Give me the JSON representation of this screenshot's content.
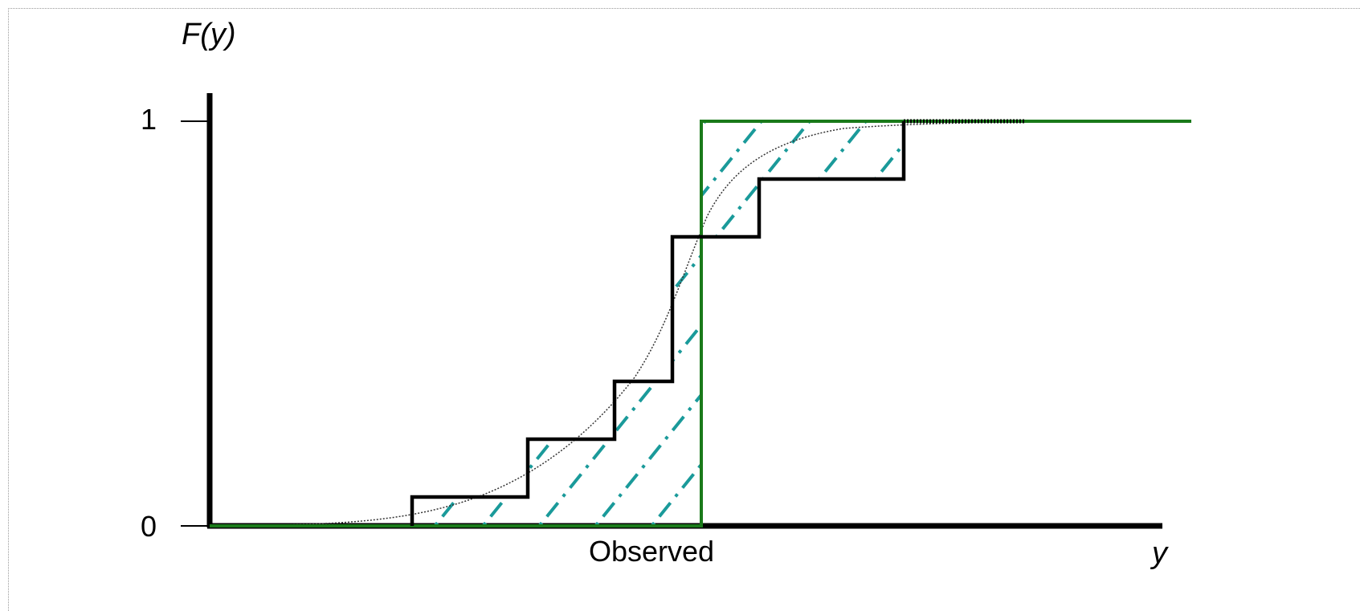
{
  "labels": {
    "y_axis_title": "F(y)",
    "x_axis_title": "y",
    "observed": "Observed",
    "tick_one": "1",
    "tick_zero": "0"
  },
  "colors": {
    "axis": "#000000",
    "empirical": "#000000",
    "observed_bounds": "#1a7a1a",
    "hatch": "#1a9a9a",
    "smooth_cdf": "#333333",
    "frame": "#9a9a9a"
  },
  "chart_data": {
    "type": "line",
    "title": "",
    "xlabel": "y",
    "ylabel": "F(y)",
    "ylim": [
      0,
      1
    ],
    "yticks": [
      0,
      1
    ],
    "observed_interval": {
      "lower_cdf_x": [
        0,
        7,
        7,
        15
      ],
      "lower_cdf_y": [
        0,
        0,
        1,
        1
      ],
      "upper_cdf_x": [
        0,
        3.5,
        3.5,
        15
      ],
      "upper_cdf_y": [
        0,
        0,
        0,
        0
      ]
    },
    "empirical_cdf_steps": [
      {
        "x": 0.0,
        "y": 0.0
      },
      {
        "x": 3.5,
        "y": 0.0
      },
      {
        "x": 3.5,
        "y": 0.071
      },
      {
        "x": 5.5,
        "y": 0.071
      },
      {
        "x": 5.5,
        "y": 0.214
      },
      {
        "x": 7.0,
        "y": 0.214
      },
      {
        "x": 7.0,
        "y": 0.357
      },
      {
        "x": 8.0,
        "y": 0.357
      },
      {
        "x": 8.0,
        "y": 0.714
      },
      {
        "x": 9.5,
        "y": 0.714
      },
      {
        "x": 9.5,
        "y": 0.857
      },
      {
        "x": 12.0,
        "y": 0.857
      },
      {
        "x": 12.0,
        "y": 1.0
      },
      {
        "x": 15.0,
        "y": 1.0
      }
    ]
  }
}
